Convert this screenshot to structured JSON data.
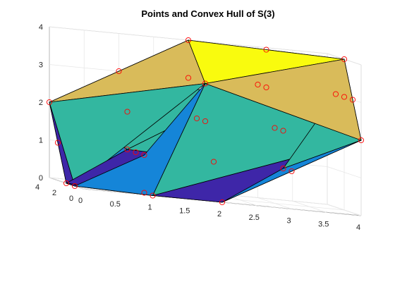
{
  "chart_data": {
    "type": "3d-surface",
    "title": "Points and Convex Hull of S(3)",
    "xlabel": "",
    "ylabel": "",
    "zlabel": "",
    "xlim": [
      0,
      4
    ],
    "ylim": [
      0,
      4
    ],
    "zlim": [
      0,
      4
    ],
    "grid": true,
    "x_ticks": [
      "0",
      "0.5",
      "1",
      "1.5",
      "2",
      "2.5",
      "3",
      "3.5",
      "4"
    ],
    "y_ticks": [
      "0",
      "2",
      "4"
    ],
    "z_ticks": [
      "0",
      "1",
      "2",
      "3",
      "4"
    ],
    "colormap": [
      "#3e26a8",
      "#1585d8",
      "#33b7a0",
      "#d9bb5a",
      "#f9fb0e"
    ],
    "point_marker_color": "#ff0000",
    "edge_color": "#000000",
    "points": [
      [
        3,
        3,
        4
      ],
      [
        4,
        2,
        4
      ],
      [
        2,
        4,
        4
      ],
      [
        4,
        3,
        3
      ],
      [
        3,
        4,
        3
      ],
      [
        4,
        1,
        3
      ],
      [
        1,
        4,
        3
      ],
      [
        4,
        0,
        2
      ],
      [
        0,
        4,
        2
      ],
      [
        3,
        0,
        1
      ],
      [
        0,
        3,
        1
      ],
      [
        2,
        0,
        0
      ],
      [
        0,
        2,
        0
      ],
      [
        1,
        0,
        0
      ],
      [
        0,
        1,
        0
      ],
      [
        1,
        1,
        0
      ],
      [
        2,
        1,
        1
      ],
      [
        1,
        2,
        1
      ],
      [
        3,
        2,
        2
      ],
      [
        2,
        3,
        2
      ],
      [
        3,
        3,
        3
      ],
      [
        2,
        2,
        3
      ],
      [
        2,
        2,
        2
      ],
      [
        1,
        1,
        1
      ],
      [
        3,
        1,
        2
      ],
      [
        1,
        3,
        2
      ],
      [
        4,
        2,
        3
      ],
      [
        2,
        4,
        3
      ],
      [
        3,
        1,
        1
      ],
      [
        1,
        3,
        1
      ]
    ]
  }
}
